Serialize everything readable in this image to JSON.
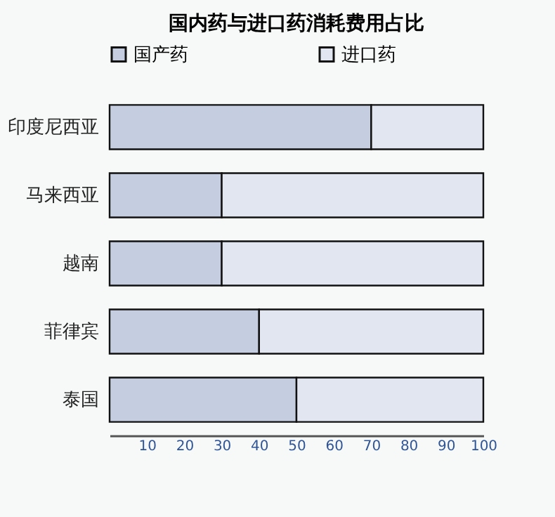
{
  "chart_data": {
    "type": "bar",
    "orientation": "horizontal",
    "stacked": true,
    "title": "国内药与进口药消耗费用占比",
    "categories": [
      "印度尼西亚",
      "马来西亚",
      "越南",
      "菲律宾",
      "泰国"
    ],
    "series": [
      {
        "name": "国产药",
        "color": "#c5cde0",
        "values": [
          70,
          30,
          30,
          40,
          50
        ]
      },
      {
        "name": "进口药",
        "color": "#e1e6f1",
        "values": [
          30,
          70,
          70,
          60,
          50
        ]
      }
    ],
    "xlim": [
      0,
      100
    ],
    "xticks": [
      10,
      20,
      30,
      40,
      50,
      60,
      70,
      80,
      90,
      100
    ],
    "grid": false,
    "legend": "top"
  }
}
